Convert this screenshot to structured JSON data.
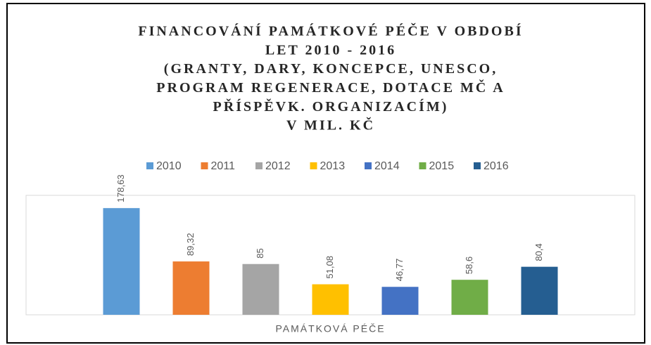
{
  "chart_data": {
    "type": "bar",
    "title": [
      "FINANCOVÁNÍ PAMÁTKOVÉ PÉČE V OBDOBÍ",
      "LET 2010 - 2016",
      "(GRANTY, DARY,  KONCEPCE,  UNESCO,",
      "PROGRAM REGENERACE, DOTACE MČ A",
      "PŘÍSPĚVK. ORGANIZACÍM)",
      "V MIL. KČ"
    ],
    "categories": [
      "PAMÁTKOVÁ PÉČE"
    ],
    "series": [
      {
        "name": "2010",
        "color": "#5b9bd5",
        "values": [
          178.63
        ],
        "value_labels": [
          "178,63"
        ]
      },
      {
        "name": "2011",
        "color": "#ed7d31",
        "values": [
          89.32
        ],
        "value_labels": [
          "89,32"
        ]
      },
      {
        "name": "2012",
        "color": "#a5a5a5",
        "values": [
          85
        ],
        "value_labels": [
          "85"
        ]
      },
      {
        "name": "2013",
        "color": "#ffc000",
        "values": [
          51.08
        ],
        "value_labels": [
          "51,08"
        ]
      },
      {
        "name": "2014",
        "color": "#4472c4",
        "values": [
          46.77
        ],
        "value_labels": [
          "46,77"
        ]
      },
      {
        "name": "2015",
        "color": "#70ad47",
        "values": [
          58.6
        ],
        "value_labels": [
          "58,6"
        ]
      },
      {
        "name": "2016",
        "color": "#255e91",
        "values": [
          80.4
        ],
        "value_labels": [
          "80,4"
        ]
      }
    ],
    "ylim": [
      0,
      200
    ],
    "legend": "top"
  }
}
